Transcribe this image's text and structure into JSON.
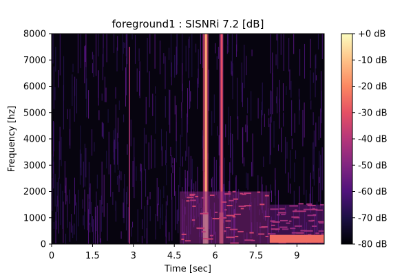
{
  "chart_data": {
    "type": "heatmap",
    "title": "foreground1 : SISNRi 7.2 [dB]",
    "xlabel": "Time [sec]",
    "ylabel": "Frequency [hz]",
    "xlim": [
      0,
      10
    ],
    "ylim": [
      0,
      8000
    ],
    "x_ticks": [
      {
        "value": 0,
        "label": "0"
      },
      {
        "value": 1.5,
        "label": "1.5"
      },
      {
        "value": 3,
        "label": "3"
      },
      {
        "value": 4.5,
        "label": "4.5"
      },
      {
        "value": 6,
        "label": "6"
      },
      {
        "value": 7.5,
        "label": "7.5"
      },
      {
        "value": 9,
        "label": "9"
      }
    ],
    "y_ticks": [
      {
        "value": 0,
        "label": "0"
      },
      {
        "value": 1000,
        "label": "1000"
      },
      {
        "value": 2000,
        "label": "2000"
      },
      {
        "value": 3000,
        "label": "3000"
      },
      {
        "value": 4000,
        "label": "4000"
      },
      {
        "value": 5000,
        "label": "5000"
      },
      {
        "value": 6000,
        "label": "6000"
      },
      {
        "value": 7000,
        "label": "7000"
      },
      {
        "value": 8000,
        "label": "8000"
      }
    ],
    "colorbar": {
      "colormap": "magma",
      "range": [
        -80,
        0
      ],
      "ticks": [
        {
          "value": 0,
          "label": "+0 dB"
        },
        {
          "value": -10,
          "label": "-10 dB"
        },
        {
          "value": -20,
          "label": "-20 dB"
        },
        {
          "value": -30,
          "label": "-30 dB"
        },
        {
          "value": -40,
          "label": "-40 dB"
        },
        {
          "value": -50,
          "label": "-50 dB"
        },
        {
          "value": -60,
          "label": "-60 dB"
        },
        {
          "value": -70,
          "label": "-70 dB"
        },
        {
          "value": -80,
          "label": "-80 dB"
        }
      ]
    },
    "features": [
      {
        "kind": "vertical-band",
        "t_start": 5.55,
        "t_end": 5.75,
        "f_max": 8000,
        "db": -15
      },
      {
        "kind": "vertical-band",
        "t_start": 6.15,
        "t_end": 6.3,
        "f_max": 8000,
        "db": -30
      },
      {
        "kind": "vertical-line",
        "t": 2.85,
        "f_max": 7500,
        "db": -40
      },
      {
        "kind": "low-band",
        "t_start": 4.7,
        "t_end": 8.0,
        "f_max": 2000,
        "db": -50
      },
      {
        "kind": "low-band",
        "t_start": 8.0,
        "t_end": 10.0,
        "f_max": 1500,
        "db": -55
      },
      {
        "kind": "horizontal-band",
        "t_start": 8.0,
        "t_end": 10.0,
        "f_center": 200,
        "db": -25
      }
    ]
  }
}
